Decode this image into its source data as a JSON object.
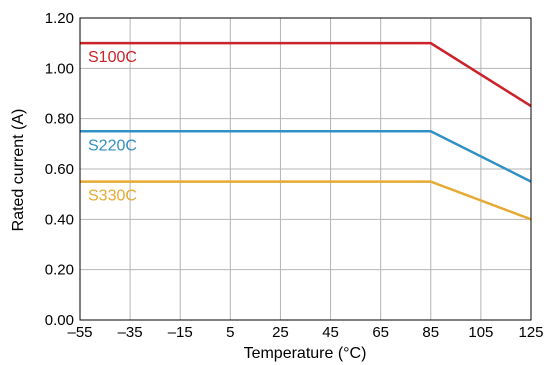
{
  "chart_data": {
    "type": "line",
    "xlabel": "Temperature (°C)",
    "ylabel": "Rated current (A)",
    "xlim": [
      -55,
      125
    ],
    "ylim": [
      0,
      1.2
    ],
    "x_ticks": [
      -55,
      -35,
      -15,
      5,
      25,
      45,
      65,
      85,
      105,
      125
    ],
    "x_tick_labels": [
      "–55",
      "–35",
      "–15",
      "5",
      "25",
      "45",
      "65",
      "85",
      "105",
      "125"
    ],
    "y_ticks": [
      0,
      0.2,
      0.4,
      0.6,
      0.8,
      1.0,
      1.2
    ],
    "y_tick_labels": [
      "0.00",
      "0.20",
      "0.40",
      "0.60",
      "0.80",
      "1.00",
      "1.20"
    ],
    "grid": true,
    "legend": "inline labels",
    "series": [
      {
        "name": "S100C",
        "color": "#cc2229",
        "points": [
          [
            -55,
            1.1
          ],
          [
            85,
            1.1
          ],
          [
            125,
            0.85
          ]
        ]
      },
      {
        "name": "S220C",
        "color": "#3390c5",
        "points": [
          [
            -55,
            0.75
          ],
          [
            85,
            0.75
          ],
          [
            125,
            0.55
          ]
        ]
      },
      {
        "name": "S330C",
        "color": "#e6a931",
        "points": [
          [
            -55,
            0.55
          ],
          [
            85,
            0.55
          ],
          [
            125,
            0.4
          ]
        ]
      }
    ]
  }
}
